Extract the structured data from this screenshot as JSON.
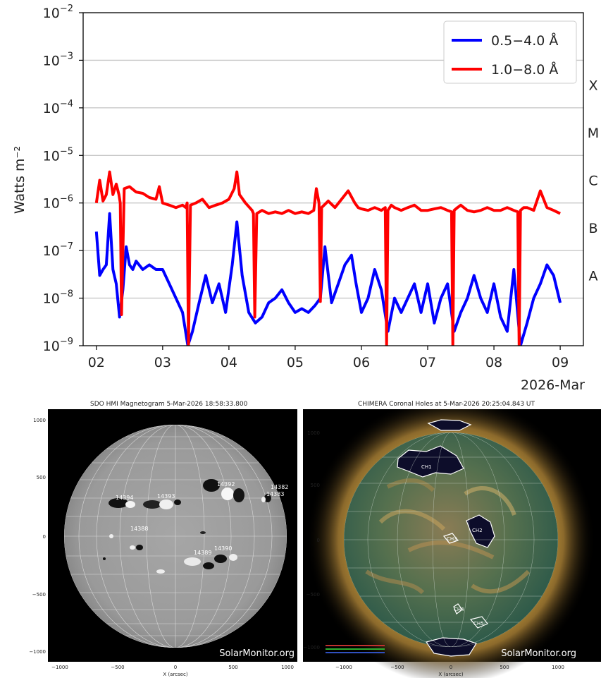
{
  "chart_data": {
    "type": "line",
    "title": "",
    "xlabel": "2026-Mar",
    "ylabel": "Watts m⁻²",
    "yscale": "log",
    "ylim": [
      1e-09,
      0.01
    ],
    "xlim": [
      1.8,
      9.35
    ],
    "x_ticks": [
      "02",
      "03",
      "04",
      "05",
      "06",
      "07",
      "08",
      "09"
    ],
    "y_ticks": [
      {
        "value": 1e-09,
        "base": "10",
        "exp": "−9"
      },
      {
        "value": 1e-08,
        "base": "10",
        "exp": "−8"
      },
      {
        "value": 1e-07,
        "base": "10",
        "exp": "−7"
      },
      {
        "value": 1e-06,
        "base": "10",
        "exp": "−6"
      },
      {
        "value": 1e-05,
        "base": "10",
        "exp": "−5"
      },
      {
        "value": 0.0001,
        "base": "10",
        "exp": "−4"
      },
      {
        "value": 0.001,
        "base": "10",
        "exp": "−3"
      },
      {
        "value": 0.01,
        "base": "10",
        "exp": "−2"
      }
    ],
    "flare_classes": [
      {
        "label": "X",
        "value": 0.0003
      },
      {
        "label": "M",
        "value": 3e-05
      },
      {
        "label": "C",
        "value": 3e-06
      },
      {
        "label": "B",
        "value": 3e-07
      },
      {
        "label": "A",
        "value": 3e-08
      }
    ],
    "grid": true,
    "legend_position": "top-right",
    "series": [
      {
        "name": "0.5−4.0 Å",
        "color": "#0000ff",
        "x": [
          2.0,
          2.05,
          2.1,
          2.15,
          2.2,
          2.25,
          2.3,
          2.35,
          2.4,
          2.45,
          2.5,
          2.55,
          2.6,
          2.7,
          2.8,
          2.9,
          3.0,
          3.1,
          3.2,
          3.3,
          3.38,
          3.45,
          3.55,
          3.65,
          3.75,
          3.85,
          3.95,
          4.05,
          4.12,
          4.2,
          4.3,
          4.4,
          4.5,
          4.6,
          4.7,
          4.8,
          4.9,
          5.0,
          5.1,
          5.2,
          5.3,
          5.38,
          5.45,
          5.55,
          5.65,
          5.75,
          5.85,
          5.92,
          6.0,
          6.1,
          6.2,
          6.3,
          6.4,
          6.5,
          6.6,
          6.7,
          6.8,
          6.9,
          7.0,
          7.1,
          7.2,
          7.3,
          7.4,
          7.5,
          7.6,
          7.7,
          7.8,
          7.9,
          8.0,
          8.1,
          8.2,
          8.3,
          8.4,
          8.5,
          8.6,
          8.7,
          8.8,
          8.9,
          9.0
        ],
        "y": [
          2.5e-07,
          3e-08,
          4e-08,
          5e-08,
          6e-07,
          4e-08,
          2e-08,
          4e-09,
          1.5e-08,
          1.2e-07,
          5e-08,
          4e-08,
          6e-08,
          4e-08,
          5e-08,
          4e-08,
          4e-08,
          2e-08,
          1e-08,
          5e-09,
          1e-09,
          2e-09,
          8e-09,
          3e-08,
          8e-09,
          2e-08,
          5e-09,
          5e-08,
          4e-07,
          3e-08,
          5e-09,
          3e-09,
          4e-09,
          8e-09,
          1e-08,
          1.5e-08,
          8e-09,
          5e-09,
          6e-09,
          5e-09,
          7e-09,
          1e-08,
          1.2e-07,
          8e-09,
          2e-08,
          5e-08,
          8e-08,
          2e-08,
          5e-09,
          1e-08,
          4e-08,
          1.5e-08,
          2e-09,
          1e-08,
          5e-09,
          1e-08,
          2e-08,
          5e-09,
          2e-08,
          3e-09,
          1e-08,
          2e-08,
          2e-09,
          5e-09,
          1e-08,
          3e-08,
          1e-08,
          5e-09,
          2e-08,
          4e-09,
          2e-09,
          4e-08,
          1e-09,
          3e-09,
          1e-08,
          2e-08,
          5e-08,
          3e-08,
          8e-09
        ]
      },
      {
        "name": "1.0−8.0 Å",
        "color": "#ff0000",
        "x": [
          2.0,
          2.05,
          2.1,
          2.15,
          2.2,
          2.25,
          2.3,
          2.34,
          2.36,
          2.38,
          2.42,
          2.5,
          2.6,
          2.7,
          2.8,
          2.9,
          2.95,
          3.0,
          3.1,
          3.2,
          3.3,
          3.35,
          3.37,
          3.39,
          3.42,
          3.5,
          3.6,
          3.7,
          3.8,
          3.9,
          4.0,
          4.08,
          4.12,
          4.16,
          4.25,
          4.35,
          4.37,
          4.39,
          4.42,
          4.5,
          4.6,
          4.7,
          4.8,
          4.9,
          5.0,
          5.1,
          5.2,
          5.28,
          5.32,
          5.36,
          5.38,
          5.4,
          5.5,
          5.6,
          5.7,
          5.8,
          5.9,
          5.95,
          6.0,
          6.1,
          6.2,
          6.3,
          6.36,
          6.38,
          6.4,
          6.45,
          6.5,
          6.6,
          6.7,
          6.8,
          6.9,
          7.0,
          7.1,
          7.2,
          7.3,
          7.36,
          7.38,
          7.4,
          7.45,
          7.5,
          7.6,
          7.7,
          7.8,
          7.9,
          8.0,
          8.1,
          8.2,
          8.3,
          8.36,
          8.38,
          8.4,
          8.45,
          8.5,
          8.6,
          8.7,
          8.8,
          8.9,
          9.0
        ],
        "y": [
          1e-06,
          3e-06,
          1.1e-06,
          1.5e-06,
          4.5e-06,
          1.5e-06,
          2.5e-06,
          1.5e-06,
          1e-06,
          4.5e-09,
          2e-06,
          2.2e-06,
          1.7e-06,
          1.6e-06,
          1.3e-06,
          1.2e-06,
          2.2e-06,
          1e-06,
          9e-07,
          8e-07,
          9e-07,
          8e-07,
          1e-06,
          1e-09,
          9e-07,
          1e-06,
          1.2e-06,
          8e-07,
          9e-07,
          1e-06,
          1.2e-06,
          2e-06,
          4.5e-06,
          1.5e-06,
          1e-06,
          7e-07,
          6e-07,
          4e-09,
          6e-07,
          7e-07,
          6e-07,
          6.5e-07,
          6e-07,
          7e-07,
          6e-07,
          6.5e-07,
          6e-07,
          7e-07,
          2e-06,
          1e-06,
          8.5e-09,
          8e-07,
          1.1e-06,
          8e-07,
          1.2e-06,
          1.8e-06,
          1e-06,
          8e-07,
          7.5e-07,
          7e-07,
          8e-07,
          7e-07,
          8e-07,
          1e-09,
          7e-07,
          9e-07,
          8e-07,
          7e-07,
          8e-07,
          9e-07,
          7e-07,
          7e-07,
          7.5e-07,
          8e-07,
          7e-07,
          6.5e-07,
          1e-09,
          7e-07,
          8e-07,
          9e-07,
          7e-07,
          6.5e-07,
          7e-07,
          8e-07,
          7e-07,
          7e-07,
          8e-07,
          7e-07,
          6.5e-07,
          1e-09,
          7e-07,
          8e-07,
          8e-07,
          7e-07,
          1.8e-06,
          8e-07,
          7e-07,
          6e-07
        ]
      }
    ]
  },
  "panels": {
    "magnetogram": {
      "title": "SDO HMI Magnetogram  5-Mar-2026 18:58:33.800",
      "watermark": "SolarMonitor.org",
      "x_ticks": [
        "−1000",
        "−500",
        "0",
        "500",
        "1000"
      ],
      "y_ticks": [
        "1000",
        "500",
        "0",
        "−500",
        "−1000"
      ],
      "xlabel": "X (arcsec)",
      "regions": [
        "14394",
        "14393",
        "14392",
        "14382",
        "14383",
        "14388",
        "14390",
        "14389"
      ]
    },
    "coronal_holes": {
      "title": "CHIMERA Coronal Holes at  5-Mar-2026 20:25:04.843 UT",
      "watermark": "SolarMonitor.org",
      "x_ticks": [
        "−1000",
        "−500",
        "0",
        "500",
        "1000"
      ],
      "y_ticks": [
        "1000",
        "500",
        "0",
        "−500",
        "−1000"
      ],
      "xlabel": "X (arcsec)",
      "holes": [
        "CH1",
        "CH2",
        "CH3",
        "CH4",
        "CH5"
      ]
    }
  }
}
